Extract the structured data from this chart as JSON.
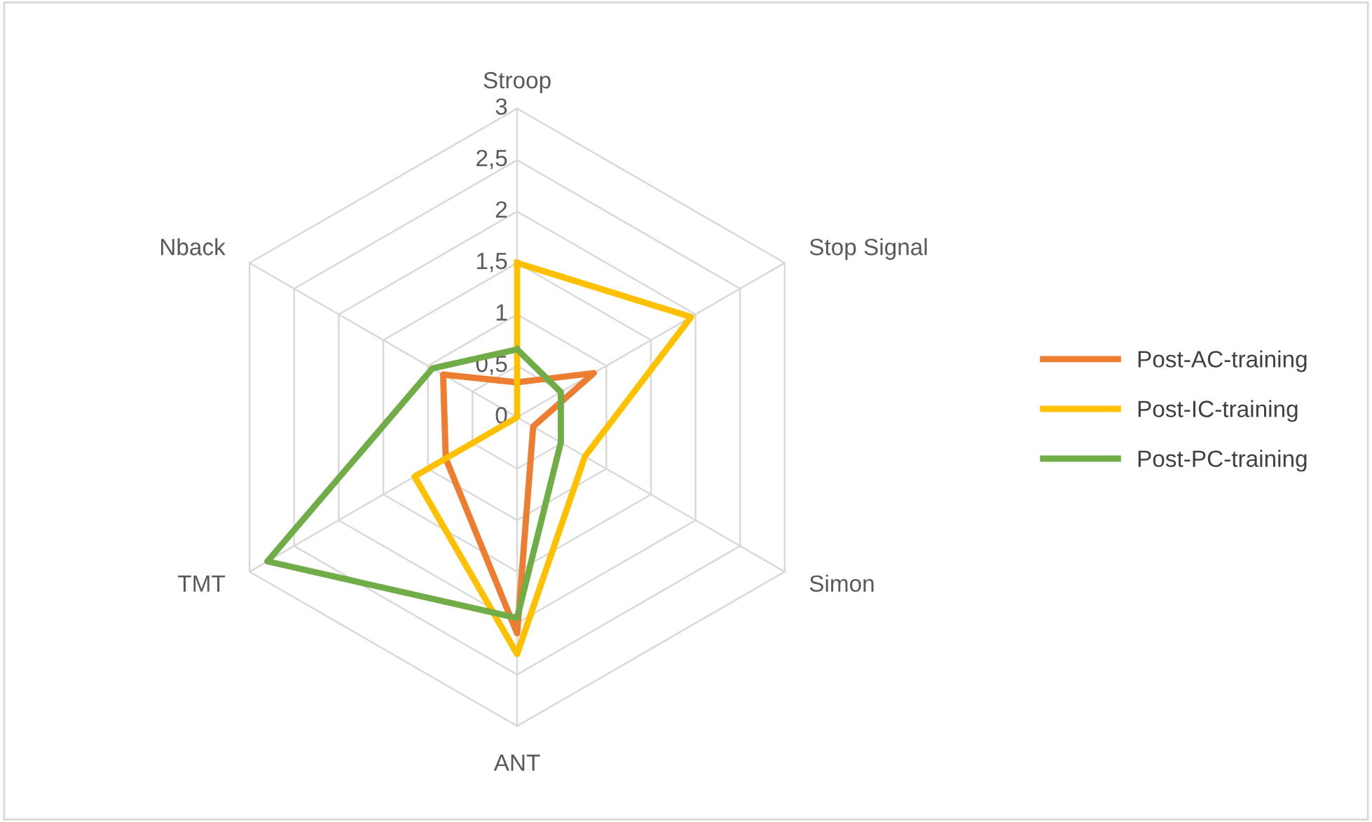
{
  "chart_data": {
    "type": "radar",
    "categories": [
      "Stroop",
      "Stop Signal",
      "Simon",
      "ANT",
      "TMT",
      "Nback"
    ],
    "series": [
      {
        "name": "Post-AC-training",
        "color": "#ed7d31",
        "values": [
          0.34,
          0.86,
          0.18,
          2.1,
          0.8,
          0.83
        ]
      },
      {
        "name": "Post-IC-training",
        "color": "#ffc000",
        "values": [
          1.5,
          1.95,
          0.76,
          2.3,
          1.15,
          0
        ]
      },
      {
        "name": "Post-PC-training",
        "color": "#70ad47",
        "values": [
          0.66,
          0.49,
          0.49,
          1.95,
          2.8,
          0.95
        ]
      }
    ],
    "ylim": [
      0,
      3
    ],
    "yticks": [
      0,
      {
        "value": 0.5,
        "label": "0,5"
      },
      1,
      {
        "value": 1.5,
        "label": "1,5"
      },
      2,
      {
        "value": 2.5,
        "label": "2,5"
      },
      3
    ],
    "grid": true,
    "legend": "right",
    "marker": "none",
    "line_style": "solid"
  }
}
